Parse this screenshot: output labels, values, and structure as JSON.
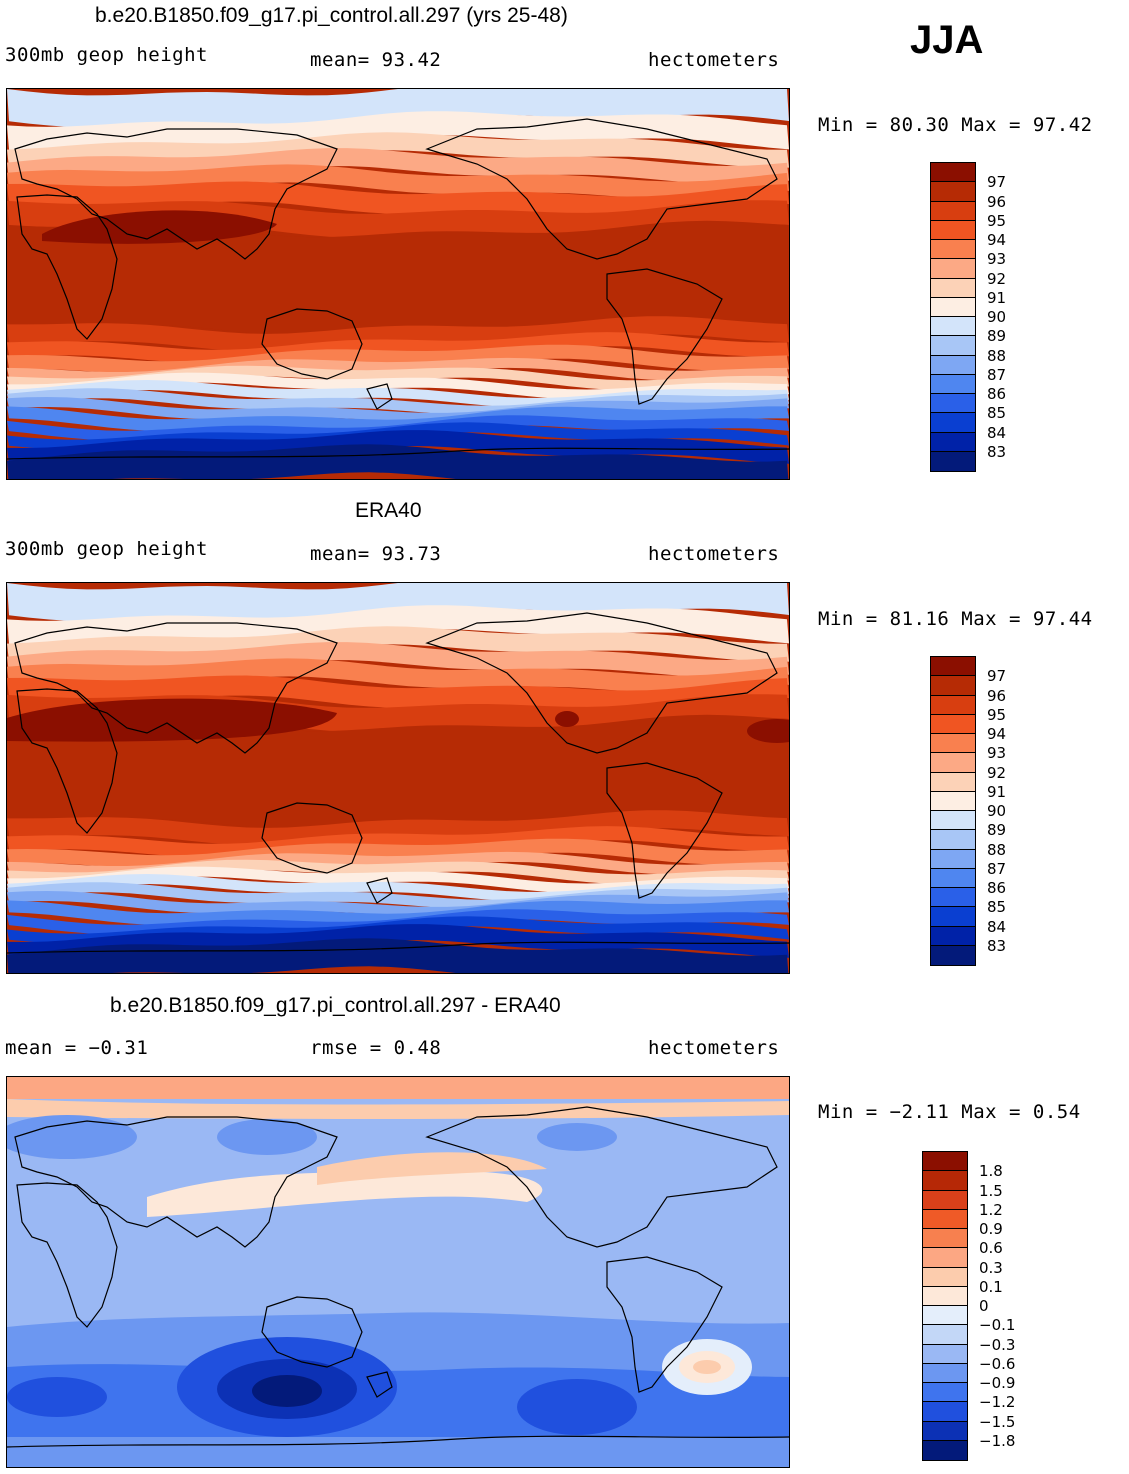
{
  "season": "JJA",
  "colors": {
    "abs": [
      "#031a7a",
      "#0022a8",
      "#0a3fd1",
      "#2a60e8",
      "#4f86f0",
      "#7ea7f3",
      "#a8c6f6",
      "#d3e4fa",
      "#fdeee3",
      "#fcd2b7",
      "#fca985",
      "#f9804f",
      "#f05522",
      "#d83e10",
      "#b62b05",
      "#8b0f00"
    ],
    "diff": [
      "#031a7a",
      "#0c31b5",
      "#2050de",
      "#3f74ee",
      "#6c97f1",
      "#9ab8f4",
      "#c3d7f7",
      "#e4eefb",
      "#fde8d9",
      "#fcccad",
      "#fca783",
      "#f7804f",
      "#ef5a27",
      "#d9401a",
      "#b62806",
      "#8b0f00"
    ]
  },
  "panels": [
    {
      "title": "b.e20.B1850.f09_g17.pi_control.all.297 (yrs 25-48)",
      "left_label": "300mb geop height",
      "mid_label": "mean=  93.42",
      "units": "hectometers",
      "min_max": "Min =  80.30 Max =  97.42",
      "colorbar_labels": [
        "97",
        "96",
        "95",
        "94",
        "93",
        "92",
        "91",
        "90",
        "89",
        "88",
        "87",
        "86",
        "85",
        "84",
        "83"
      ]
    },
    {
      "title": "ERA40",
      "left_label": "300mb geop height",
      "mid_label": "mean=  93.73",
      "units": "hectometers",
      "min_max": "Min =  81.16 Max =  97.44",
      "colorbar_labels": [
        "97",
        "96",
        "95",
        "94",
        "93",
        "92",
        "91",
        "90",
        "89",
        "88",
        "87",
        "86",
        "85",
        "84",
        "83"
      ]
    },
    {
      "title": "b.e20.B1850.f09_g17.pi_control.all.297 - ERA40",
      "left_label": "mean =  −0.31",
      "mid_label": "rmse =    0.48",
      "units": "hectometers",
      "min_max": "Min =  −2.11 Max =    0.54",
      "colorbar_labels": [
        "1.8",
        "1.5",
        "1.2",
        "0.9",
        "0.6",
        "0.3",
        "0.1",
        "0",
        "−0.1",
        "−0.3",
        "−0.6",
        "−0.9",
        "−1.2",
        "−1.5",
        "−1.8"
      ]
    }
  ]
}
